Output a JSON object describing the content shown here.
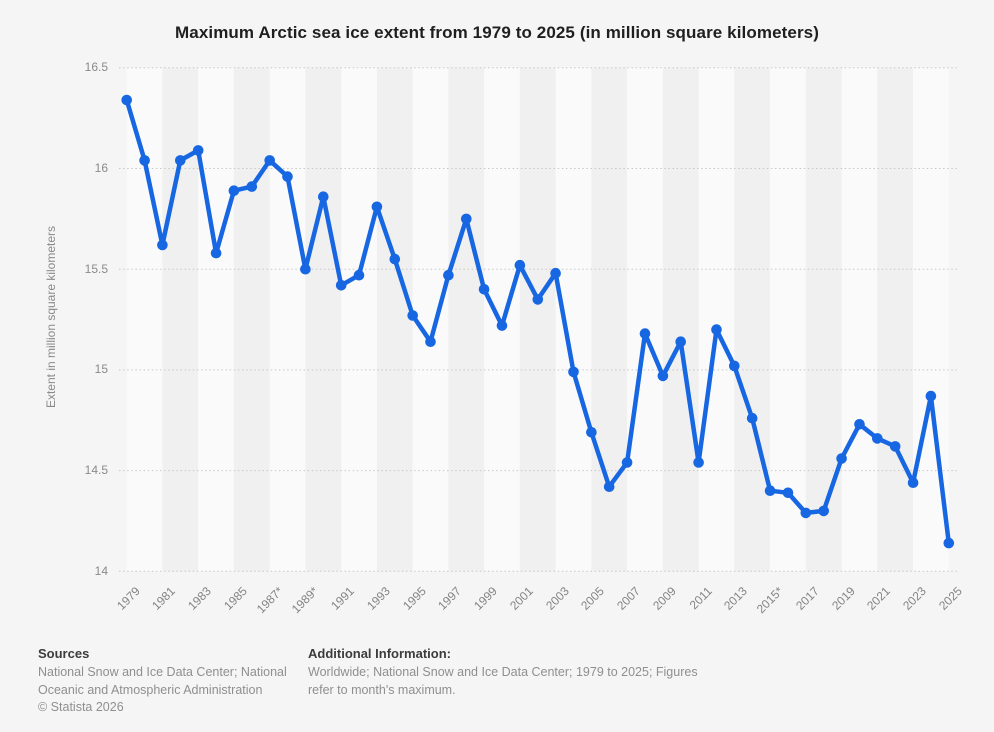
{
  "title": "Maximum Arctic sea ice extent from 1979 to 2025 (in million square kilometers)",
  "chart_data": {
    "type": "line",
    "title": "Maximum Arctic sea ice extent from 1979 to 2025 (in million square kilometers)",
    "xlabel": "",
    "ylabel": "Extent in million square kilometers",
    "ylim": [
      14,
      16.5
    ],
    "yticks": [
      16.5,
      16,
      15.5,
      15,
      14.5,
      14
    ],
    "grid": "horizontal-dotted",
    "legend": "none",
    "line_color": "#1766e2",
    "band_colors": [
      "#fafafa",
      "#f0f0f0"
    ],
    "gridline_color": "#c8c8c8",
    "x": [
      1979,
      1980,
      1981,
      1982,
      1983,
      1984,
      1985,
      1986,
      1987,
      1988,
      1989,
      1990,
      1991,
      1992,
      1993,
      1994,
      1995,
      1996,
      1997,
      1998,
      1999,
      2000,
      2001,
      2002,
      2003,
      2004,
      2005,
      2006,
      2007,
      2008,
      2009,
      2010,
      2011,
      2012,
      2013,
      2014,
      2015,
      2016,
      2017,
      2018,
      2019,
      2020,
      2021,
      2022,
      2023,
      2024,
      2025
    ],
    "values": [
      16.34,
      16.04,
      15.62,
      16.04,
      16.09,
      15.58,
      15.89,
      15.91,
      16.04,
      15.96,
      15.5,
      15.86,
      15.42,
      15.47,
      15.81,
      15.55,
      15.27,
      15.14,
      15.47,
      15.75,
      15.4,
      15.22,
      15.52,
      15.35,
      15.48,
      14.99,
      14.69,
      14.42,
      14.54,
      15.18,
      14.97,
      15.14,
      14.54,
      15.2,
      15.02,
      14.76,
      14.4,
      14.39,
      14.29,
      14.3,
      14.56,
      14.73,
      14.66,
      14.62,
      14.44,
      14.87,
      14.14
    ],
    "x_tick_labels": [
      "1979",
      "1981",
      "1983",
      "1985",
      "1987*",
      "1989*",
      "1991",
      "1993",
      "1995",
      "1997",
      "1999",
      "2001",
      "2003",
      "2005",
      "2007",
      "2009",
      "2011",
      "2013",
      "2015*",
      "2017",
      "2019",
      "2021",
      "2023",
      "2025"
    ]
  },
  "footer": {
    "sources_heading": "Sources",
    "sources_text": "National Snow and Ice Data Center; National Oceanic and Atmospheric Administration",
    "copyright": "© Statista 2026",
    "additional_heading": "Additional Information:",
    "additional_text": "Worldwide; National Snow and Ice Data Center; 1979 to 2025; Figures refer to month's maximum."
  }
}
